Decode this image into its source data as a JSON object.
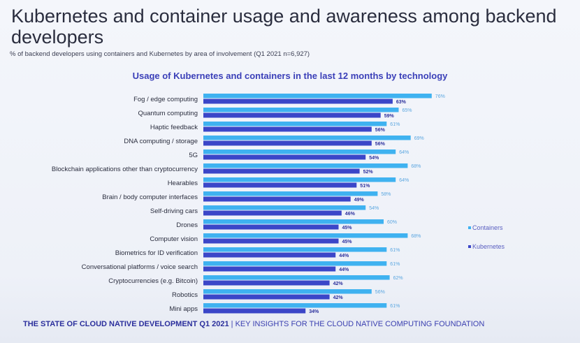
{
  "header": {
    "title": "Kubernetes and container usage and awareness among backend developers",
    "subtitle": "% of backend developers using containers and Kubernetes by area of involvement (Q1 2021 n=6,927)"
  },
  "footer": {
    "bold": "THE STATE OF CLOUD NATIVE DEVELOPMENT Q1 2021",
    "separator": " | ",
    "rest": "KEY INSIGHTS  FOR THE CLOUD NATIVE COMPUTING FOUNDATION"
  },
  "chart_data": {
    "type": "bar",
    "orientation": "horizontal",
    "title": "Usage of Kubernetes and containers in the last 12 months by technology",
    "xlabel": "",
    "ylabel": "",
    "xlim": [
      0,
      100
    ],
    "grid": false,
    "legend_position": "right",
    "categories": [
      "Fog / edge computing",
      "Quantum computing",
      "Haptic feedback",
      "DNA computing / storage",
      "5G",
      "Blockchain applications other than cryptocurrency",
      "Hearables",
      "Brain / body computer interfaces",
      "Self-driving cars",
      "Drones",
      "Computer vision",
      "Biometrics for ID verification",
      "Conversational platforms / voice search",
      "Cryptocurrencies (e.g. Bitcoin)",
      "Robotics",
      "Mini apps"
    ],
    "series": [
      {
        "name": "Containers",
        "color": "#3fb2f0",
        "values": [
          76,
          65,
          61,
          69,
          64,
          68,
          64,
          58,
          54,
          60,
          68,
          61,
          61,
          62,
          56,
          61
        ]
      },
      {
        "name": "Kubernetes",
        "color": "#3b46c8",
        "values": [
          63,
          59,
          56,
          56,
          54,
          52,
          51,
          49,
          46,
          45,
          45,
          44,
          44,
          42,
          42,
          34
        ]
      }
    ]
  }
}
